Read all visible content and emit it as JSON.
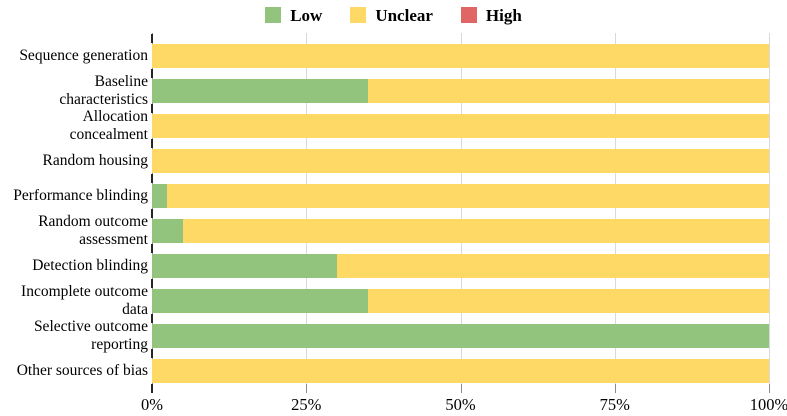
{
  "chart_data": {
    "type": "bar",
    "stacked": true,
    "orientation": "horizontal",
    "title": "",
    "xlabel": "",
    "ylabel": "",
    "categories": [
      "Sequence generation",
      "Baseline characteristics",
      "Allocation concealment",
      "Random housing",
      "Performance blinding",
      "Random outcome assessment",
      "Detection blinding",
      "Incomplete outcome data",
      "Selective outcome reporting",
      "Other sources of bias"
    ],
    "display_labels": [
      "Sequence generation",
      "Baseline\ncharacteristics",
      "Allocation\nconcealment",
      "Random housing",
      "Performance blinding",
      "Random outcome\nassessment",
      "Detection blinding",
      "Incomplete outcome\ndata",
      "Selective outcome\nreporting",
      "Other sources of bias"
    ],
    "series": [
      {
        "name": "Low",
        "color": "#93c47d",
        "values": [
          0,
          35,
          0,
          0,
          2.5,
          5,
          30,
          35,
          100,
          0
        ]
      },
      {
        "name": "Unclear",
        "color": "#ffd966",
        "values": [
          100,
          65,
          100,
          100,
          97.5,
          95,
          70,
          65,
          0,
          100
        ]
      },
      {
        "name": "High",
        "color": "#e06666",
        "values": [
          0,
          0,
          0,
          0,
          0,
          0,
          0,
          0,
          0,
          0
        ]
      }
    ],
    "x_tick_labels": [
      "0%",
      "25%",
      "50%",
      "75%",
      "100%"
    ],
    "xlim": [
      0,
      100
    ],
    "legend_position": "top-center",
    "grid": "vertical-light-gray"
  },
  "colors": {
    "low": "#93c47d",
    "unclear": "#ffd966",
    "high": "#e06666",
    "gridline": "#d9d9d9",
    "axis": "#8c8c8c",
    "tick": "#262626",
    "text": "#000000",
    "background": "#ffffff"
  }
}
